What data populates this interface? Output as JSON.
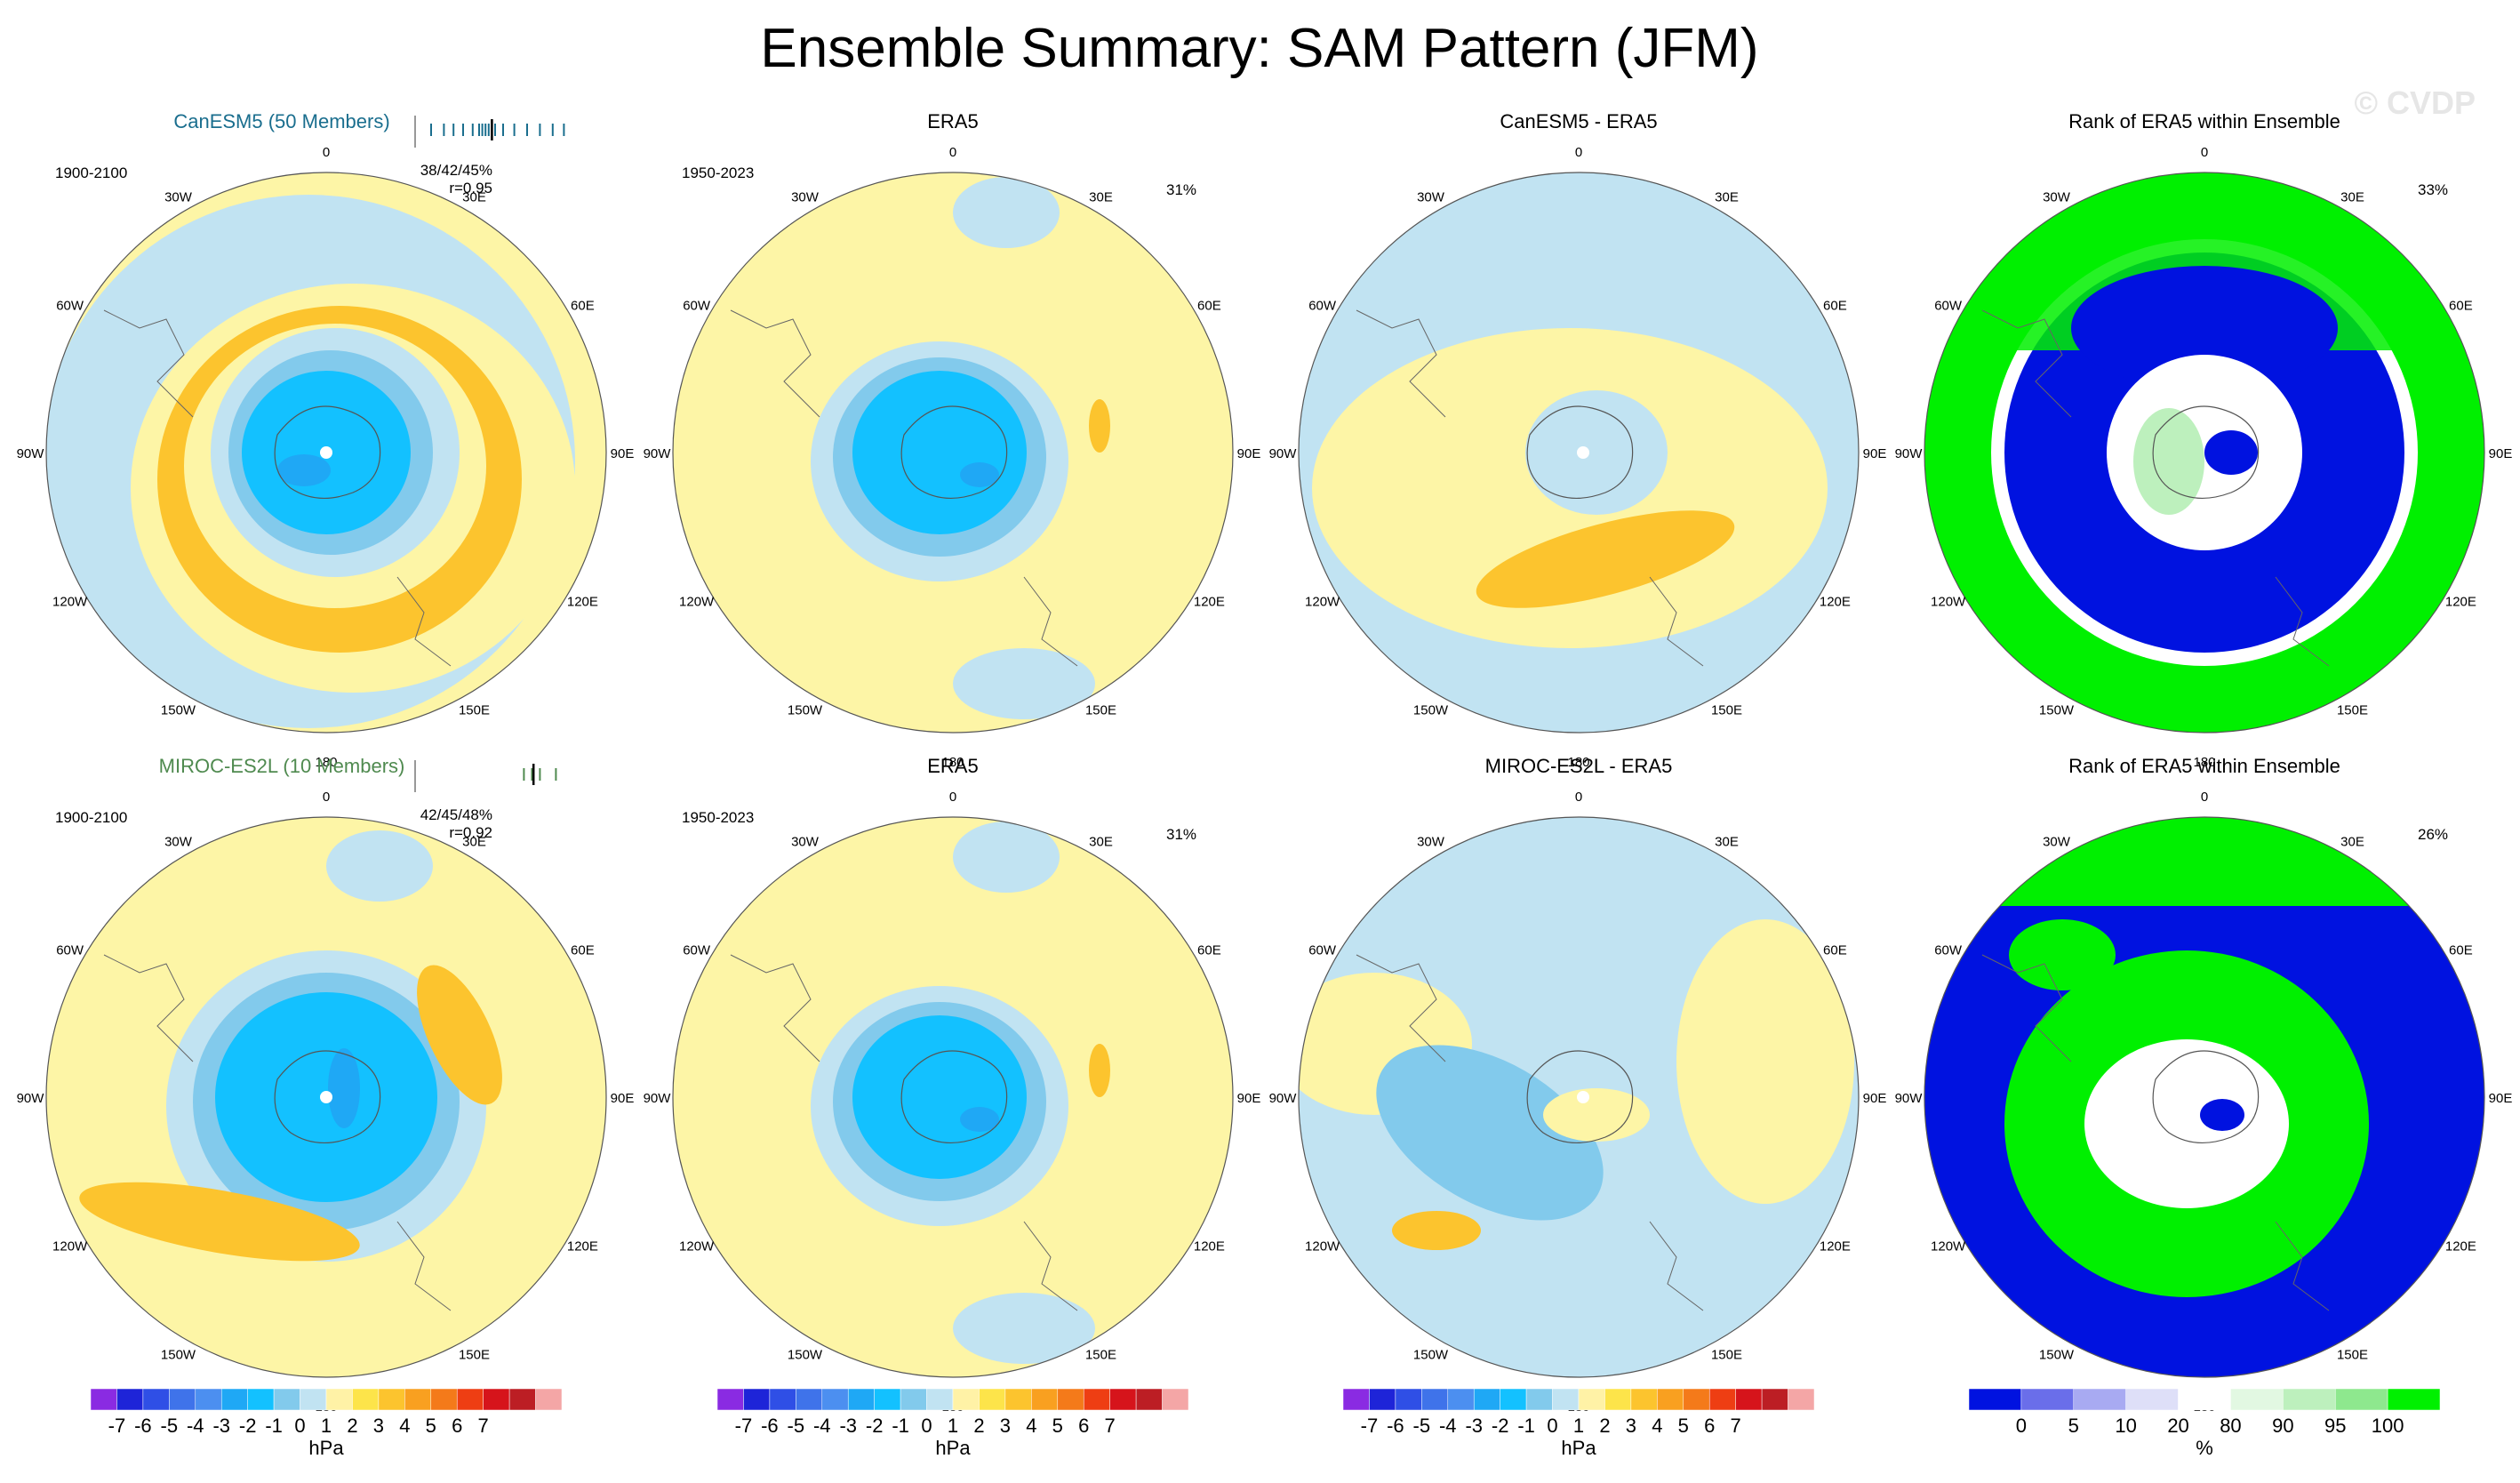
{
  "title": "Ensemble Summary: SAM Pattern (JFM)",
  "watermark": "© CVDP",
  "longitude_labels": [
    "0",
    "30E",
    "60E",
    "90E",
    "120E",
    "150E",
    "180",
    "150W",
    "120W",
    "90W",
    "60W",
    "30W"
  ],
  "colors": {
    "title_model1": "#1a6e8e",
    "title_model2": "#4f8a4f",
    "ocean_base_pressure": "#fdf5a6",
    "ocean_base_rank": "#ffffff"
  },
  "chart_data": [
    {
      "type": "map",
      "panel": "model1_pattern",
      "title": "CanESM5 (50 Members)",
      "period": "1900-2100",
      "stats": "38/42/45%",
      "pattern_corr": "r=0.95",
      "strip_values": [
        0.1,
        0.18,
        0.24,
        0.3,
        0.36,
        0.4,
        0.42,
        0.44,
        0.46,
        0.5,
        0.55,
        0.62,
        0.7,
        0.78,
        0.86,
        0.93
      ],
      "strip_highlight": 0.48
    },
    {
      "type": "map",
      "panel": "era5_pattern_1",
      "title": "ERA5",
      "period": "1950-2023",
      "pct_variance": "31%"
    },
    {
      "type": "map",
      "panel": "difference_1",
      "title": "CanESM5 - ERA5"
    },
    {
      "type": "map",
      "panel": "rank_1",
      "title": "Rank of ERA5 within Ensemble",
      "pct_variance": "33%"
    },
    {
      "type": "map",
      "panel": "model2_pattern",
      "title": "MIROC-ES2L (10 Members)",
      "period": "1900-2100",
      "stats": "42/45/48%",
      "pattern_corr": "r=0.92",
      "strip_values": [
        0.68,
        0.73,
        0.78,
        0.88
      ],
      "strip_highlight": 0.74
    },
    {
      "type": "map",
      "panel": "era5_pattern_2",
      "title": "ERA5",
      "period": "1950-2023",
      "pct_variance": "31%"
    },
    {
      "type": "map",
      "panel": "difference_2",
      "title": "MIROC-ES2L - ERA5"
    },
    {
      "type": "map",
      "panel": "rank_2",
      "title": "Rank of ERA5 within Ensemble",
      "pct_variance": "26%"
    }
  ],
  "colorbar_pressure": {
    "unit": "hPa",
    "labels": [
      "-7",
      "-6",
      "-5",
      "-4",
      "-3",
      "-2",
      "-1",
      "0",
      "1",
      "2",
      "3",
      "4",
      "5",
      "6",
      "7"
    ],
    "colors": [
      "#8a2be2",
      "#1e24d8",
      "#2f4fe6",
      "#3f73ea",
      "#4c8ff0",
      "#1fa8f5",
      "#13c1ff",
      "#82caec",
      "#c1e3f2",
      "#fff2a6",
      "#fde44a",
      "#fcc42e",
      "#f9a020",
      "#f47a1a",
      "#ee3e13",
      "#d6141b",
      "#bc1e24",
      "#f4a6a6"
    ]
  },
  "colorbar_rank": {
    "unit": "%",
    "labels": [
      "0",
      "5",
      "10",
      "20",
      "80",
      "90",
      "95",
      "100"
    ],
    "colors": [
      "#0012e0",
      "#6a6eea",
      "#a8aaf2",
      "#dedff8",
      "#ffffff",
      "#e2f8e2",
      "#bdf0bd",
      "#8ee88e",
      "#00f000"
    ]
  }
}
